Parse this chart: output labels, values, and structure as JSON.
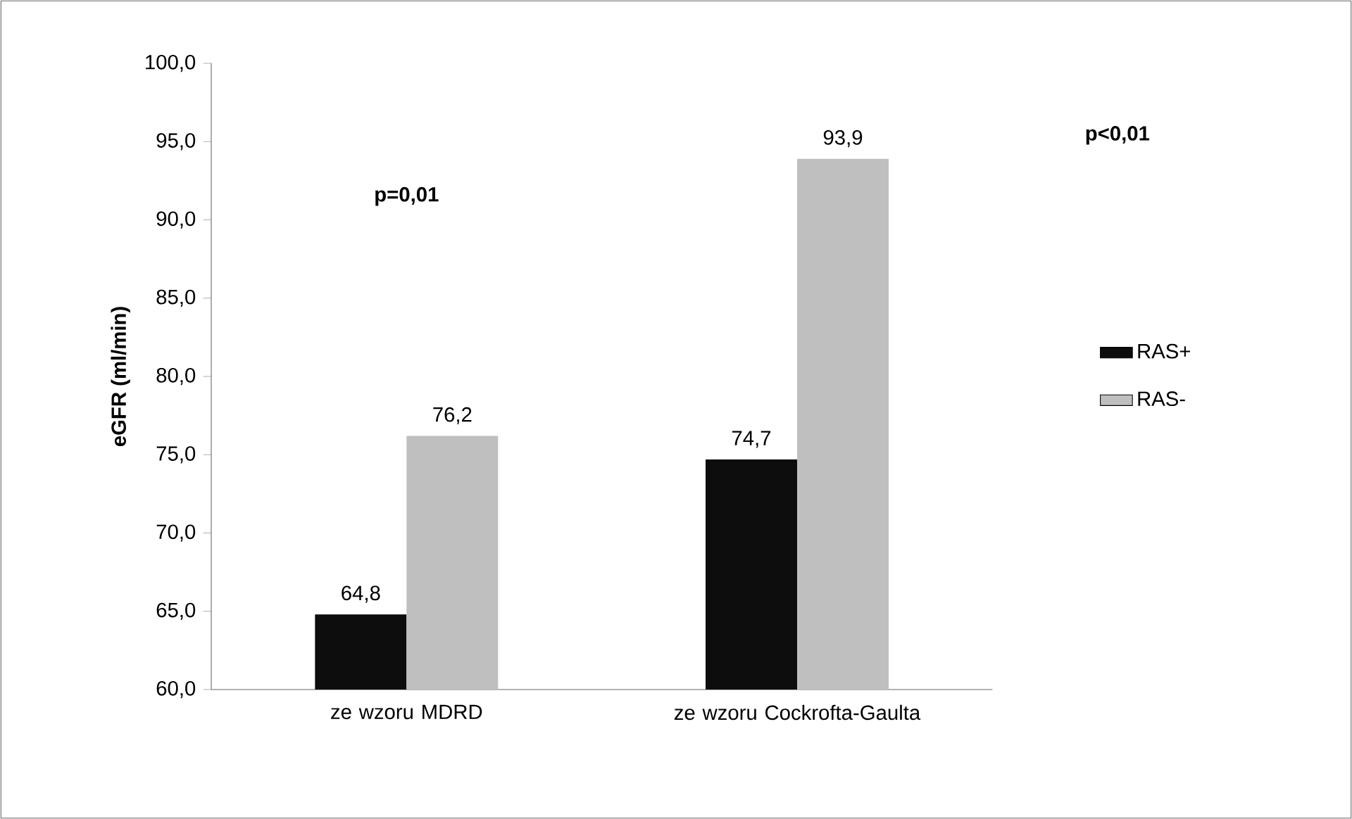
{
  "chart_data": {
    "type": "bar",
    "ylabel": "eGFR (ml/min)",
    "categories": [
      "ze wzoru MDRD",
      "ze wzoru Cockrofta-Gaulta"
    ],
    "series": [
      {
        "name": "RAS+",
        "color": "#0d0d0d",
        "values": [
          64.8,
          74.7
        ],
        "value_labels": [
          "64,8",
          "74,7"
        ]
      },
      {
        "name": "RAS-",
        "color": "#bfbfbf",
        "values": [
          76.2,
          93.9
        ],
        "value_labels": [
          "76,2",
          "93,9"
        ]
      }
    ],
    "ylim": [
      60,
      100
    ],
    "yticks": [
      {
        "value": 60,
        "label": "60,0"
      },
      {
        "value": 65,
        "label": "65,0"
      },
      {
        "value": 70,
        "label": "70,0"
      },
      {
        "value": 75,
        "label": "75,0"
      },
      {
        "value": 80,
        "label": "80,0"
      },
      {
        "value": 85,
        "label": "85,0"
      },
      {
        "value": 90,
        "label": "90,0"
      },
      {
        "value": 95,
        "label": "95,0"
      },
      {
        "value": 100,
        "label": "100,0"
      }
    ],
    "legend": "right",
    "annotations": [
      "p=0,01",
      "p<0,01"
    ]
  }
}
